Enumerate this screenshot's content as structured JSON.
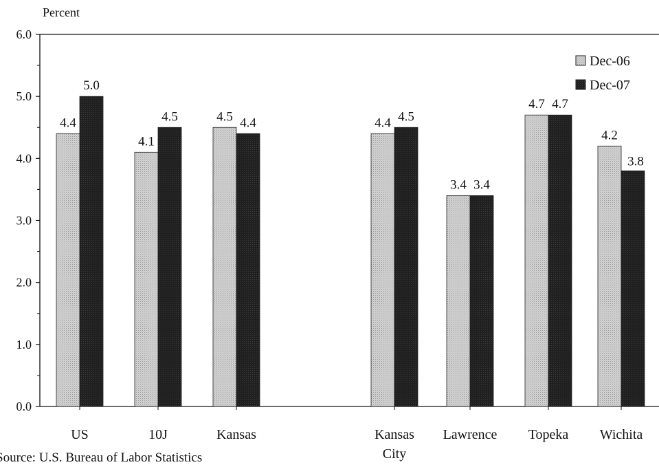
{
  "chart_data": {
    "type": "bar",
    "y_unit_label": "Percent",
    "ylim": [
      0,
      6
    ],
    "y_ticks": [
      "0.0",
      "1.0",
      "2.0",
      "3.0",
      "4.0",
      "5.0",
      "6.0"
    ],
    "categories": [
      "US",
      "10J",
      "Kansas",
      "Kansas City",
      "Lawrence",
      "Topeka",
      "Wichita"
    ],
    "category_gap_after": "Kansas",
    "series": [
      {
        "name": "Dec-06",
        "color": "#c9c9c9",
        "values": [
          4.4,
          4.1,
          4.5,
          4.4,
          3.4,
          4.7,
          4.2
        ],
        "labels": [
          "4.4",
          "4.1",
          "4.5",
          "4.4",
          "3.4",
          "4.7",
          "4.2"
        ]
      },
      {
        "name": "Dec-07",
        "color": "#1e1e1e",
        "values": [
          5.0,
          4.5,
          4.4,
          4.5,
          3.4,
          4.7,
          3.8
        ],
        "labels": [
          "5.0",
          "4.5",
          "4.4",
          "4.5",
          "3.4",
          "4.7",
          "3.8"
        ]
      }
    ],
    "legend_position": "top-right",
    "grid": false
  },
  "source_note": "Source: U.S. Bureau of Labor Statistics"
}
